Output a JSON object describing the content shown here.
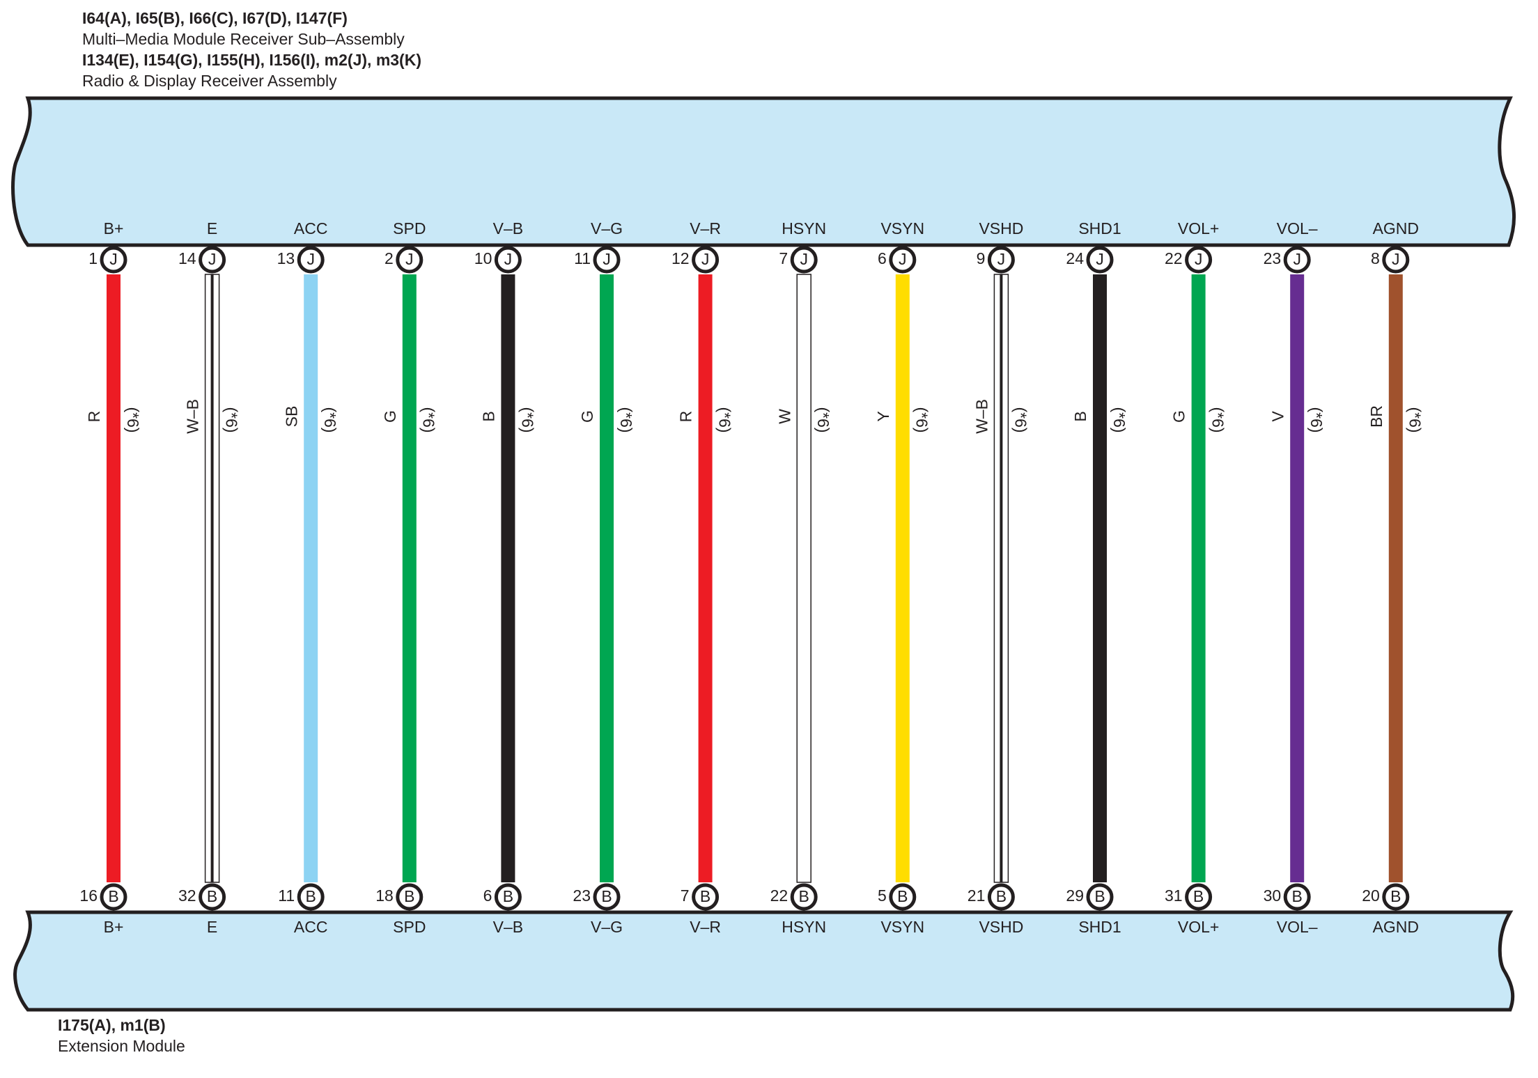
{
  "header": {
    "line1": "I64(A), I65(B), I66(C), I67(D), I147(F)",
    "line2": "Multi–Media Module Receiver Sub–Assembly",
    "line3": "I134(E), I154(G), I155(H), I156(I), m2(J), m3(K)",
    "line4": "Radio & Display Receiver Assembly"
  },
  "footer": {
    "line1": "I175(A), m1(B)",
    "line2": "Extension Module"
  },
  "top_connector": "J",
  "bottom_connector": "B",
  "note": "(*6)",
  "wires": [
    {
      "top_label": "B+",
      "top_pin": "1",
      "code": "R",
      "color": "#ed1c24",
      "bottom_pin": "16",
      "bottom_label": "B+"
    },
    {
      "top_label": "E",
      "top_pin": "14",
      "code": "W–B",
      "color": "#ffffff",
      "stripe": "#231f20",
      "bottom_pin": "32",
      "bottom_label": "E"
    },
    {
      "top_label": "ACC",
      "top_pin": "13",
      "code": "SB",
      "color": "#8dd3f3",
      "bottom_pin": "11",
      "bottom_label": "ACC"
    },
    {
      "top_label": "SPD",
      "top_pin": "2",
      "code": "G",
      "color": "#00a651",
      "bottom_pin": "18",
      "bottom_label": "SPD"
    },
    {
      "top_label": "V–B",
      "top_pin": "10",
      "code": "B",
      "color": "#231f20",
      "bottom_pin": "6",
      "bottom_label": "V–B"
    },
    {
      "top_label": "V–G",
      "top_pin": "11",
      "code": "G",
      "color": "#00a651",
      "bottom_pin": "23",
      "bottom_label": "V–G"
    },
    {
      "top_label": "V–R",
      "top_pin": "12",
      "code": "R",
      "color": "#ed1c24",
      "bottom_pin": "7",
      "bottom_label": "V–R"
    },
    {
      "top_label": "HSYN",
      "top_pin": "7",
      "code": "W",
      "color": "#ffffff",
      "bottom_pin": "22",
      "bottom_label": "HSYN"
    },
    {
      "top_label": "VSYN",
      "top_pin": "6",
      "code": "Y",
      "color": "#ffdd00",
      "bottom_pin": "5",
      "bottom_label": "VSYN"
    },
    {
      "top_label": "VSHD",
      "top_pin": "9",
      "code": "W–B",
      "color": "#ffffff",
      "stripe": "#231f20",
      "bottom_pin": "21",
      "bottom_label": "VSHD"
    },
    {
      "top_label": "SHD1",
      "top_pin": "24",
      "code": "B",
      "color": "#231f20",
      "bottom_pin": "29",
      "bottom_label": "SHD1"
    },
    {
      "top_label": "VOL+",
      "top_pin": "22",
      "code": "G",
      "color": "#00a651",
      "bottom_pin": "31",
      "bottom_label": "VOL+"
    },
    {
      "top_label": "VOL–",
      "top_pin": "23",
      "code": "V",
      "color": "#662d91",
      "bottom_pin": "30",
      "bottom_label": "VOL–"
    },
    {
      "top_label": "AGND",
      "top_pin": "8",
      "code": "BR",
      "color": "#a0522d",
      "bottom_pin": "20",
      "bottom_label": "AGND"
    }
  ]
}
